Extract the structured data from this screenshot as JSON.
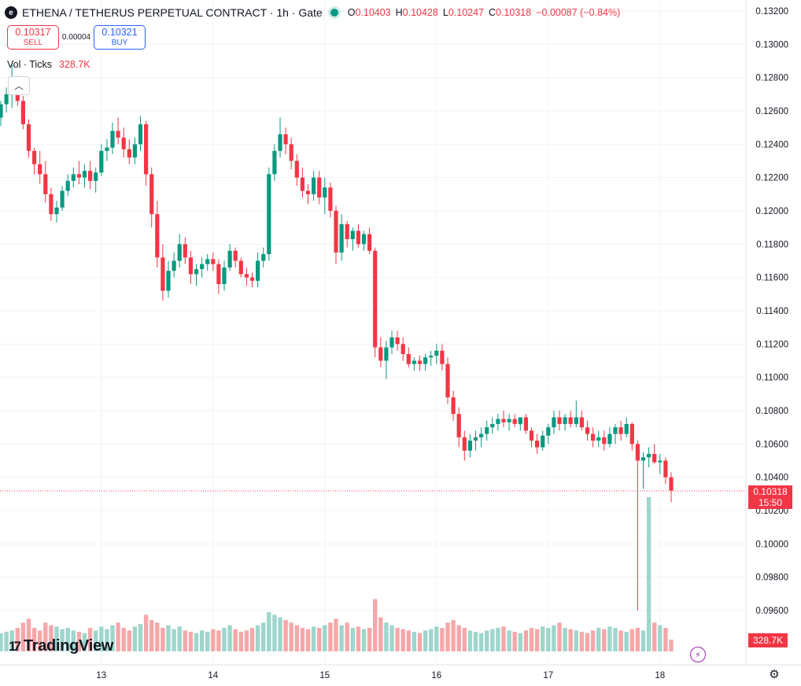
{
  "header": {
    "title": "ETHENA / TETHERUS PERPETUAL CONTRACT · 1h · Gate",
    "ohlc": {
      "o_label": "O",
      "o": "0.10403",
      "h_label": "H",
      "h": "0.10428",
      "l_label": "L",
      "l": "0.10247",
      "c_label": "C",
      "c": "0.10318",
      "change": "−0.00087 (−0.84%)"
    }
  },
  "trade": {
    "sell_price": "0.10317",
    "sell_label": "SELL",
    "spread": "0.00004",
    "buy_price": "0.10321",
    "buy_label": "BUY"
  },
  "volume_legend": {
    "label": "Vol · Ticks",
    "value": "328.7K"
  },
  "price_tag": {
    "price": "0.10318",
    "countdown": "15:50"
  },
  "volume_tag": "328.7K",
  "logo": "TradingView",
  "colors": {
    "up": "#089981",
    "down": "#f23645",
    "up_vol": "#9ed6cc",
    "down_vol": "#f5a7a9",
    "grid": "#f0f3fa"
  },
  "chart_data": {
    "type": "candlestick",
    "interval": "1h",
    "y_ticks": [
      "0.13200",
      "0.13000",
      "0.12800",
      "0.12600",
      "0.12400",
      "0.12200",
      "0.12000",
      "0.11800",
      "0.11600",
      "0.11400",
      "0.11200",
      "0.11000",
      "0.10800",
      "0.10600",
      "0.10400",
      "0.10200",
      "0.10000",
      "0.09800",
      "0.09600"
    ],
    "ylim": [
      0.0925,
      0.1329
    ],
    "x_ticks": [
      {
        "label": "13",
        "index": 18
      },
      {
        "label": "14",
        "index": 38
      },
      {
        "label": "15",
        "index": 58
      },
      {
        "label": "16",
        "index": 78
      },
      {
        "label": "17",
        "index": 98
      },
      {
        "label": "18",
        "index": 118
      }
    ],
    "last_price": 0.10318,
    "candles": [
      [
        0.1256,
        0.1266,
        0.1251,
        0.1264
      ],
      [
        0.1264,
        0.1274,
        0.1259,
        0.127
      ],
      [
        0.127,
        0.1289,
        0.1262,
        0.1278
      ],
      [
        0.1278,
        0.1281,
        0.1263,
        0.1266
      ],
      [
        0.1266,
        0.1269,
        0.1249,
        0.1252
      ],
      [
        0.1252,
        0.1255,
        0.1232,
        0.1236
      ],
      [
        0.1236,
        0.1238,
        0.1222,
        0.1228
      ],
      [
        0.1228,
        0.1236,
        0.1216,
        0.1222
      ],
      [
        0.1222,
        0.123,
        0.1205,
        0.121
      ],
      [
        0.121,
        0.1214,
        0.1194,
        0.1198
      ],
      [
        0.1198,
        0.1206,
        0.1193,
        0.1202
      ],
      [
        0.1202,
        0.1215,
        0.12,
        0.1212
      ],
      [
        0.1212,
        0.1222,
        0.1209,
        0.1218
      ],
      [
        0.1218,
        0.1226,
        0.1214,
        0.1222
      ],
      [
        0.1222,
        0.123,
        0.1216,
        0.122
      ],
      [
        0.122,
        0.1228,
        0.1214,
        0.1224
      ],
      [
        0.1224,
        0.123,
        0.1213,
        0.1218
      ],
      [
        0.1218,
        0.1226,
        0.1211,
        0.1223
      ],
      [
        0.1223,
        0.124,
        0.1221,
        0.1236
      ],
      [
        0.1236,
        0.1243,
        0.123,
        0.1238
      ],
      [
        0.1238,
        0.1253,
        0.1234,
        0.1248
      ],
      [
        0.1248,
        0.1256,
        0.124,
        0.1244
      ],
      [
        0.1244,
        0.125,
        0.1232,
        0.1237
      ],
      [
        0.1237,
        0.1243,
        0.1228,
        0.1232
      ],
      [
        0.1232,
        0.1244,
        0.1228,
        0.124
      ],
      [
        0.124,
        0.1257,
        0.1236,
        0.1252
      ],
      [
        0.1252,
        0.1254,
        0.1215,
        0.1222
      ],
      [
        0.1222,
        0.1226,
        0.119,
        0.1198
      ],
      [
        0.1198,
        0.1206,
        0.1166,
        0.1172
      ],
      [
        0.1172,
        0.118,
        0.1146,
        0.1152
      ],
      [
        0.1152,
        0.117,
        0.1148,
        0.1164
      ],
      [
        0.1164,
        0.1175,
        0.116,
        0.117
      ],
      [
        0.117,
        0.1186,
        0.1166,
        0.118
      ],
      [
        0.118,
        0.1184,
        0.1168,
        0.1172
      ],
      [
        0.1172,
        0.1176,
        0.1156,
        0.1162
      ],
      [
        0.1162,
        0.1168,
        0.1155,
        0.1165
      ],
      [
        0.1165,
        0.1172,
        0.116,
        0.1168
      ],
      [
        0.1168,
        0.1174,
        0.1164,
        0.1171
      ],
      [
        0.1171,
        0.1175,
        0.1164,
        0.1168
      ],
      [
        0.1168,
        0.1171,
        0.115,
        0.1156
      ],
      [
        0.1156,
        0.117,
        0.1152,
        0.1166
      ],
      [
        0.1166,
        0.118,
        0.1164,
        0.1176
      ],
      [
        0.1176,
        0.1178,
        0.1166,
        0.117
      ],
      [
        0.117,
        0.1172,
        0.116,
        0.1162
      ],
      [
        0.1162,
        0.1166,
        0.1155,
        0.116
      ],
      [
        0.116,
        0.1163,
        0.1154,
        0.1158
      ],
      [
        0.1158,
        0.1175,
        0.1154,
        0.117
      ],
      [
        0.117,
        0.1178,
        0.1166,
        0.1174
      ],
      [
        0.1174,
        0.1226,
        0.117,
        0.1222
      ],
      [
        0.1222,
        0.124,
        0.1218,
        0.1236
      ],
      [
        0.1236,
        0.1256,
        0.1232,
        0.1246
      ],
      [
        0.1246,
        0.125,
        0.1234,
        0.124
      ],
      [
        0.124,
        0.1244,
        0.1225,
        0.123
      ],
      [
        0.123,
        0.1234,
        0.1215,
        0.122
      ],
      [
        0.122,
        0.1226,
        0.1208,
        0.1212
      ],
      [
        0.1212,
        0.1216,
        0.1204,
        0.121
      ],
      [
        0.121,
        0.1224,
        0.1206,
        0.122
      ],
      [
        0.122,
        0.1224,
        0.1204,
        0.1208
      ],
      [
        0.1208,
        0.122,
        0.1198,
        0.1214
      ],
      [
        0.1214,
        0.1217,
        0.1196,
        0.12
      ],
      [
        0.12,
        0.1203,
        0.1168,
        0.1175
      ],
      [
        0.1175,
        0.1198,
        0.117,
        0.1192
      ],
      [
        0.1192,
        0.1194,
        0.1178,
        0.1183
      ],
      [
        0.1183,
        0.119,
        0.1176,
        0.1188
      ],
      [
        0.1188,
        0.1192,
        0.1178,
        0.118
      ],
      [
        0.118,
        0.1188,
        0.1176,
        0.1186
      ],
      [
        0.1186,
        0.119,
        0.1174,
        0.1176
      ],
      [
        0.1176,
        0.1178,
        0.1112,
        0.1118
      ],
      [
        0.1118,
        0.1124,
        0.1106,
        0.111
      ],
      [
        0.111,
        0.1122,
        0.1099,
        0.1118
      ],
      [
        0.1118,
        0.1128,
        0.1114,
        0.1124
      ],
      [
        0.1124,
        0.1128,
        0.1116,
        0.112
      ],
      [
        0.112,
        0.1124,
        0.111,
        0.1114
      ],
      [
        0.1114,
        0.1118,
        0.1106,
        0.1108
      ],
      [
        0.1108,
        0.1112,
        0.1104,
        0.111
      ],
      [
        0.111,
        0.1113,
        0.1104,
        0.1108
      ],
      [
        0.1108,
        0.1114,
        0.1104,
        0.1112
      ],
      [
        0.1112,
        0.1116,
        0.1107,
        0.1113
      ],
      [
        0.1113,
        0.112,
        0.1108,
        0.1116
      ],
      [
        0.1116,
        0.112,
        0.1104,
        0.1108
      ],
      [
        0.1108,
        0.1112,
        0.1084,
        0.1088
      ],
      [
        0.1088,
        0.1092,
        0.1074,
        0.1078
      ],
      [
        0.1078,
        0.1082,
        0.1058,
        0.1064
      ],
      [
        0.1064,
        0.1068,
        0.105,
        0.1056
      ],
      [
        0.1056,
        0.1066,
        0.1052,
        0.1062
      ],
      [
        0.1062,
        0.1068,
        0.1056,
        0.1064
      ],
      [
        0.1064,
        0.107,
        0.1058,
        0.1066
      ],
      [
        0.1066,
        0.1074,
        0.1062,
        0.107
      ],
      [
        0.107,
        0.1076,
        0.1066,
        0.1072
      ],
      [
        0.1072,
        0.1078,
        0.1068,
        0.1075
      ],
      [
        0.1075,
        0.108,
        0.107,
        0.1073
      ],
      [
        0.1073,
        0.1078,
        0.1068,
        0.1075
      ],
      [
        0.1075,
        0.1078,
        0.107,
        0.1072
      ],
      [
        0.1072,
        0.1076,
        0.1068,
        0.1076
      ],
      [
        0.1076,
        0.1078,
        0.1066,
        0.1068
      ],
      [
        0.1068,
        0.107,
        0.1058,
        0.1062
      ],
      [
        0.1062,
        0.1066,
        0.1054,
        0.1058
      ],
      [
        0.1058,
        0.1068,
        0.1056,
        0.1065
      ],
      [
        0.1065,
        0.1072,
        0.106,
        0.107
      ],
      [
        0.107,
        0.108,
        0.1066,
        0.1076
      ],
      [
        0.1076,
        0.108,
        0.1068,
        0.1072
      ],
      [
        0.1072,
        0.1078,
        0.1068,
        0.1076
      ],
      [
        0.1076,
        0.108,
        0.107,
        0.1072
      ],
      [
        0.1072,
        0.1086,
        0.107,
        0.1076
      ],
      [
        0.1076,
        0.108,
        0.1068,
        0.107
      ],
      [
        0.107,
        0.1074,
        0.1062,
        0.1066
      ],
      [
        0.1066,
        0.107,
        0.1058,
        0.1062
      ],
      [
        0.1062,
        0.1068,
        0.1058,
        0.1064
      ],
      [
        0.1064,
        0.1068,
        0.1056,
        0.106
      ],
      [
        0.106,
        0.107,
        0.1058,
        0.1066
      ],
      [
        0.1066,
        0.1072,
        0.106,
        0.107
      ],
      [
        0.107,
        0.1074,
        0.1062,
        0.1066
      ],
      [
        0.1066,
        0.1076,
        0.1064,
        0.1072
      ],
      [
        0.1072,
        0.1073,
        0.1056,
        0.106
      ],
      [
        0.106,
        0.1062,
        0.096,
        0.105
      ],
      [
        0.105,
        0.1055,
        0.1033,
        0.1052
      ],
      [
        0.1052,
        0.1058,
        0.1046,
        0.1054
      ],
      [
        0.1054,
        0.106,
        0.1048,
        0.1049
      ],
      [
        0.1049,
        0.1054,
        0.1042,
        0.105
      ],
      [
        0.105,
        0.1052,
        0.1036,
        0.104
      ],
      [
        0.104,
        0.1043,
        0.1025,
        0.1032
      ]
    ],
    "volumes": [
      14,
      15,
      16,
      18,
      22,
      25,
      18,
      16,
      22,
      20,
      19,
      17,
      18,
      16,
      15,
      14,
      18,
      16,
      19,
      17,
      20,
      22,
      18,
      16,
      19,
      21,
      28,
      24,
      22,
      18,
      20,
      17,
      19,
      16,
      15,
      14,
      16,
      15,
      17,
      16,
      18,
      20,
      17,
      15,
      16,
      18,
      20,
      22,
      30,
      28,
      26,
      24,
      22,
      20,
      18,
      17,
      19,
      18,
      20,
      22,
      25,
      20,
      22,
      18,
      19,
      17,
      18,
      40,
      26,
      22,
      20,
      18,
      17,
      16,
      15,
      14,
      16,
      17,
      19,
      18,
      22,
      24,
      20,
      18,
      16,
      15,
      14,
      16,
      17,
      18,
      19,
      16,
      15,
      14,
      16,
      18,
      17,
      19,
      18,
      20,
      22,
      18,
      17,
      16,
      15,
      14,
      16,
      18,
      17,
      19,
      18,
      16,
      15,
      17,
      18,
      16,
      118,
      22,
      20,
      18,
      9
    ]
  }
}
